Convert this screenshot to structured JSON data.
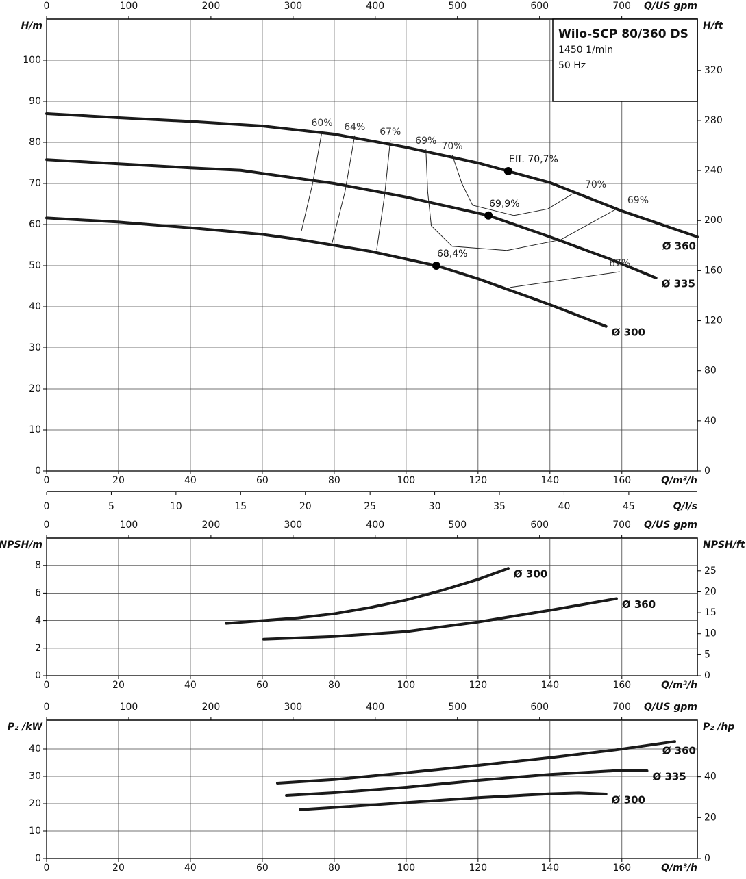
{
  "chart_data": [
    {
      "type": "line",
      "title": "Wilo-SCP 80/360 DS",
      "subtitle": [
        "1450 1/min",
        "50 Hz"
      ],
      "xlabel": "Q/m³/h",
      "ylabel": "H/m",
      "y2label": "H/ft",
      "x2label": "Q/US gpm",
      "x3label": "Q/l/s",
      "xlim": [
        0,
        181
      ],
      "xticks": [
        0,
        20,
        40,
        60,
        80,
        100,
        120,
        140,
        160
      ],
      "ylim": [
        0,
        110
      ],
      "yticks": [
        0,
        10,
        20,
        30,
        40,
        50,
        60,
        70,
        80,
        90,
        100
      ],
      "y2lim": [
        0,
        360.9
      ],
      "y2ticks": [
        0,
        40,
        80,
        120,
        160,
        200,
        240,
        280,
        320
      ],
      "x2lim": [
        0,
        792
      ],
      "x2ticks": [
        0,
        100,
        200,
        300,
        400,
        500,
        600,
        700
      ],
      "x3lim": [
        0,
        50.3
      ],
      "x3ticks": [
        0,
        5,
        10,
        15,
        20,
        25,
        30,
        35,
        40,
        45
      ],
      "grid": true,
      "series": [
        {
          "name": "Ø 360",
          "color": "#1a1a1a",
          "x": [
            0,
            20,
            40,
            60,
            80,
            100,
            120,
            128.4,
            140,
            160,
            181
          ],
          "values": [
            87,
            86,
            85.1,
            84,
            82,
            78.8,
            75,
            73,
            70.2,
            63.3,
            57
          ]
        },
        {
          "name": "Ø 335",
          "color": "#1a1a1a",
          "x": [
            0,
            20,
            40,
            54,
            80,
            100,
            122.9,
            140,
            157,
            169.5
          ],
          "values": [
            75.8,
            74.8,
            73.8,
            73.2,
            70,
            66.7,
            62.2,
            57,
            51.5,
            47
          ]
        },
        {
          "name": "Ø 300",
          "color": "#1a1a1a",
          "x": [
            0,
            20,
            40,
            60,
            70,
            90,
            108.4,
            120,
            140,
            155.6
          ],
          "values": [
            61.6,
            60.6,
            59.2,
            57.6,
            56.4,
            53.5,
            50,
            46.8,
            40.5,
            35.2
          ]
        }
      ],
      "efficiency_lines": [
        {
          "labels": [
            "60%"
          ],
          "x": [
            76.6,
            74,
            70.9
          ],
          "y": [
            82.7,
            70,
            58.5
          ]
        },
        {
          "labels": [
            "64%"
          ],
          "x": [
            85.7,
            83,
            79.4
          ],
          "y": [
            81.7,
            68,
            55.5
          ]
        },
        {
          "labels": [
            "67%"
          ],
          "x": [
            95.6,
            94,
            91.8
          ],
          "y": [
            80.5,
            67,
            53.8
          ]
        },
        {
          "labels": [
            "69%",
            "69%"
          ],
          "x": [
            105.5,
            106,
            107,
            112.8,
            128,
            143,
            158.5
          ],
          "y": [
            78.3,
            68,
            59.7,
            54.7,
            53.7,
            56.3,
            63.8
          ]
        },
        {
          "labels": [
            "70%",
            "70%"
          ],
          "x": [
            112.8,
            115.5,
            118.5,
            130,
            139.4,
            146.7
          ],
          "y": [
            77,
            70,
            64.7,
            62.2,
            63.8,
            67.7
          ]
        },
        {
          "labels": [
            "67%"
          ],
          "x": [
            159.4,
            129
          ],
          "y": [
            48.5,
            44.7
          ]
        }
      ],
      "points": [
        {
          "label": "Eff. 70,7%",
          "x": 128.4,
          "y": 73
        },
        {
          "label": "69,9%",
          "x": 122.9,
          "y": 62.2
        },
        {
          "label": "68,4%",
          "x": 108.4,
          "y": 50
        }
      ]
    },
    {
      "type": "line",
      "xlabel": "Q/m³/h",
      "ylabel": "NPSH/m",
      "y2label": "NPSH/ft",
      "x2label": "Q/US gpm",
      "xlim": [
        0,
        181
      ],
      "xticks": [
        0,
        20,
        40,
        60,
        80,
        100,
        120,
        140,
        160
      ],
      "ylim": [
        0,
        10
      ],
      "yticks": [
        0,
        2,
        4,
        6,
        8
      ],
      "y2lim": [
        0,
        32.8
      ],
      "y2ticks": [
        0,
        5,
        10,
        15,
        20,
        25
      ],
      "x2lim": [
        0,
        792
      ],
      "x2ticks": [
        0,
        100,
        200,
        300,
        400,
        500,
        600,
        700
      ],
      "grid": true,
      "series": [
        {
          "name": "Ø 300",
          "color": "#1a1a1a",
          "x": [
            50,
            60,
            70,
            80,
            90,
            100,
            110,
            120,
            128.4
          ],
          "values": [
            3.8,
            4,
            4.2,
            4.5,
            4.95,
            5.5,
            6.2,
            7,
            7.8
          ]
        },
        {
          "name": "Ø 360",
          "color": "#1a1a1a",
          "x": [
            60.4,
            80,
            100,
            120,
            140,
            158.5
          ],
          "values": [
            2.65,
            2.85,
            3.2,
            3.9,
            4.75,
            5.6
          ]
        }
      ]
    },
    {
      "type": "line",
      "xlabel": "Q/m³/h",
      "ylabel": "P₂ /kW",
      "y2label": "P₂ /hp",
      "x2label": "Q/US gpm",
      "xlim": [
        0,
        181
      ],
      "xticks": [
        0,
        20,
        40,
        60,
        80,
        100,
        120,
        140,
        160
      ],
      "ylim": [
        0,
        50.5
      ],
      "yticks": [
        0,
        10,
        20,
        30,
        40
      ],
      "y2lim": [
        0,
        67.7
      ],
      "y2ticks": [
        0,
        20,
        40
      ],
      "x2lim": [
        0,
        792
      ],
      "x2ticks": [
        0,
        100,
        200,
        300,
        400,
        500,
        600,
        700
      ],
      "grid": true,
      "series": [
        {
          "name": "Ø 360",
          "color": "#1a1a1a",
          "x": [
            64.2,
            80,
            100,
            120,
            140,
            158.5,
            174.7
          ],
          "values": [
            27.5,
            28.8,
            31.3,
            34,
            36.8,
            39.7,
            42.7
          ]
        },
        {
          "name": "Ø 335",
          "color": "#1a1a1a",
          "x": [
            66.7,
            80,
            100,
            120,
            140,
            157.5,
            167
          ],
          "values": [
            23,
            24,
            26,
            28.5,
            30.7,
            32,
            32
          ]
        },
        {
          "name": "Ø 300",
          "color": "#1a1a1a",
          "x": [
            70.5,
            80,
            100,
            120,
            140,
            148,
            155.6
          ],
          "values": [
            17.8,
            18.6,
            20.4,
            22.2,
            23.6,
            23.9,
            23.5
          ]
        }
      ]
    }
  ]
}
